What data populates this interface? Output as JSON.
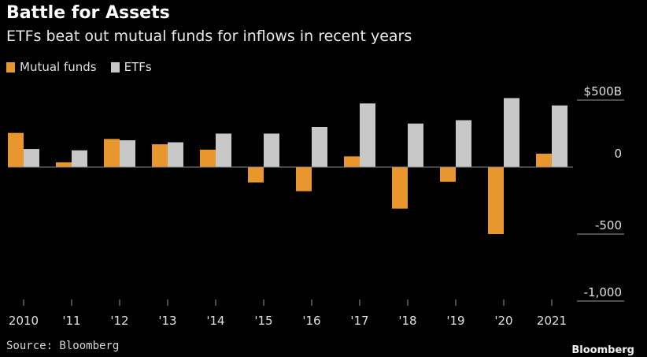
{
  "header": {
    "title": "Battle for Assets",
    "subtitle": "ETFs beat out mutual funds for inflows in recent years"
  },
  "footer": {
    "source": "Source: Bloomberg",
    "brand": "Bloomberg"
  },
  "colors": {
    "background": "#000000",
    "mutual_funds": "#e8962e",
    "etfs": "#c8c8c8",
    "zero_line": "#8a8a8a",
    "text": "#e0e0e0"
  },
  "chart_data": {
    "type": "bar",
    "categories": [
      "2010",
      "'11",
      "'12",
      "'13",
      "'14",
      "'15",
      "'16",
      "'17",
      "'18",
      "'19",
      "'20",
      "2021"
    ],
    "series": [
      {
        "name": "Mutual funds",
        "values": [
          255,
          35,
          210,
          170,
          130,
          -115,
          -180,
          80,
          -310,
          -110,
          -500,
          100
        ]
      },
      {
        "name": "ETFs",
        "values": [
          135,
          125,
          200,
          185,
          250,
          250,
          300,
          475,
          325,
          350,
          515,
          460
        ]
      }
    ],
    "ylim": [
      -1000,
      500
    ],
    "yticks": [
      {
        "value": 500,
        "label": "$500B"
      },
      {
        "value": 0,
        "label": "0"
      },
      {
        "value": -500,
        "label": "-500"
      },
      {
        "value": -1000,
        "label": "-1,000"
      }
    ],
    "legend_position": "top-left",
    "grid": false
  }
}
